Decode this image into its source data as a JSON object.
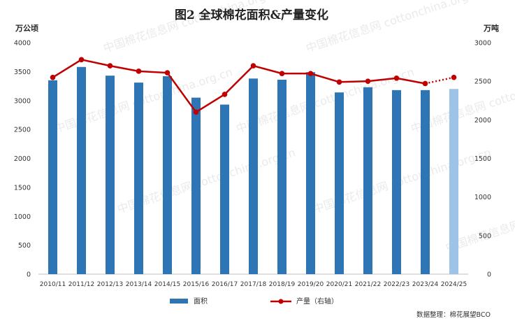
{
  "chart_data": {
    "type": "bar+line",
    "title": "图2  全球棉花面积&产量变化",
    "left_unit": "万公顷",
    "right_unit": "万吨",
    "categories": [
      "2010/11",
      "2011/12",
      "2012/13",
      "2013/14",
      "2014/15",
      "2015/16",
      "2016/17",
      "2017/18",
      "2018/19",
      "2019/20",
      "2020/21",
      "2021/22",
      "2022/23",
      "2023/24",
      "2024/25"
    ],
    "series": [
      {
        "name": "面积",
        "type": "bar",
        "axis": "left",
        "color": "#2e75b6",
        "forecast_color": "#9dc3e6",
        "values": [
          3350,
          3580,
          3430,
          3310,
          3420,
          3050,
          2930,
          3380,
          3360,
          3490,
          3140,
          3230,
          3180,
          3180,
          3200
        ]
      },
      {
        "name": "产量（右轴）",
        "type": "line",
        "axis": "right",
        "color": "#c00000",
        "forecast_dotted_last_segment": true,
        "values": [
          2550,
          2780,
          2700,
          2630,
          2610,
          2100,
          2330,
          2700,
          2600,
          2600,
          2490,
          2500,
          2540,
          2470,
          2550
        ]
      }
    ],
    "y_left": {
      "min": 0,
      "max": 4000,
      "step": 500
    },
    "y_right": {
      "min": 0,
      "max": 3000,
      "step": 500
    },
    "legend_position": "bottom",
    "grid": false,
    "source": "数据整理：棉花展望BCO"
  },
  "watermark": "中国棉花信息网 cottonchina.org.cn"
}
